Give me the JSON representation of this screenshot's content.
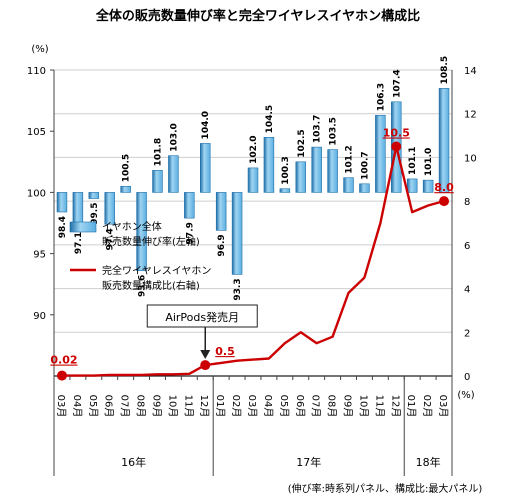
{
  "chart_data": {
    "type": "bar+line",
    "title": "全体の販売数量伸び率と完全ワイヤレスイヤホン構成比",
    "left_axis": {
      "unit": "(%)",
      "ylim": [
        85,
        110
      ],
      "ticks": [
        "90",
        "95",
        "100",
        "105",
        "110"
      ]
    },
    "right_axis": {
      "unit": "(%)",
      "ylim": [
        0,
        14
      ],
      "ticks": [
        "0",
        "2",
        "4",
        "6",
        "8",
        "10",
        "12",
        "14"
      ]
    },
    "categories": [
      "03月",
      "04月",
      "05月",
      "06月",
      "07月",
      "08月",
      "09月",
      "10月",
      "11月",
      "12月",
      "01月",
      "02月",
      "03月",
      "04月",
      "05月",
      "06月",
      "07月",
      "08月",
      "09月",
      "10月",
      "11月",
      "12月",
      "01月",
      "02月",
      "03月"
    ],
    "year_labels": [
      "16年",
      "17年",
      "18年"
    ],
    "series": [
      {
        "name": "イヤホン全体\n販売数量伸び率(左軸)",
        "axis": "left",
        "type": "bar",
        "values": [
          98.4,
          97.1,
          99.5,
          97.4,
          100.5,
          93.6,
          101.8,
          103.0,
          97.9,
          104.0,
          96.9,
          93.3,
          102.0,
          104.5,
          100.3,
          102.5,
          103.7,
          103.5,
          101.2,
          100.7,
          106.3,
          107.4,
          101.1,
          101.0,
          108.5
        ],
        "labels": [
          "98.4",
          "97.1",
          "99.5",
          "97.4",
          "100.5",
          "93.6",
          "101.8",
          "103.0",
          "97.9",
          "104.0",
          "96.9",
          "93.3",
          "102.0",
          "104.5",
          "100.3",
          "102.5",
          "103.7",
          "103.5",
          "101.2",
          "100.7",
          "106.3",
          "107.4",
          "101.1",
          "101.0",
          "108.5"
        ]
      },
      {
        "name": "完全ワイヤレスイヤホン\n販売数量構成比(右軸)",
        "axis": "right",
        "type": "line",
        "values": [
          0.02,
          0.02,
          0.02,
          0.05,
          0.05,
          0.05,
          0.08,
          0.08,
          0.1,
          0.5,
          0.6,
          0.7,
          0.75,
          0.8,
          1.5,
          2.0,
          1.5,
          1.8,
          3.8,
          4.5,
          7.0,
          10.5,
          7.5,
          7.8,
          8.0
        ]
      }
    ],
    "highlight_labels": [
      {
        "index": 0,
        "text": "0.02"
      },
      {
        "index": 9,
        "text": "0.5"
      },
      {
        "index": 21,
        "text": "10.5"
      },
      {
        "index": 24,
        "text": "8.0"
      }
    ],
    "annotation": {
      "index": 9,
      "text": "AirPods発売月"
    },
    "footnote": "(伸び率:時系列パネル、構成比:最大パネル)",
    "colors": {
      "bar": "#5aaee0",
      "bar_dark": "#1f6fa8",
      "line": "#cc0000",
      "grid": "#cfcfcf",
      "text": "#111111"
    }
  }
}
